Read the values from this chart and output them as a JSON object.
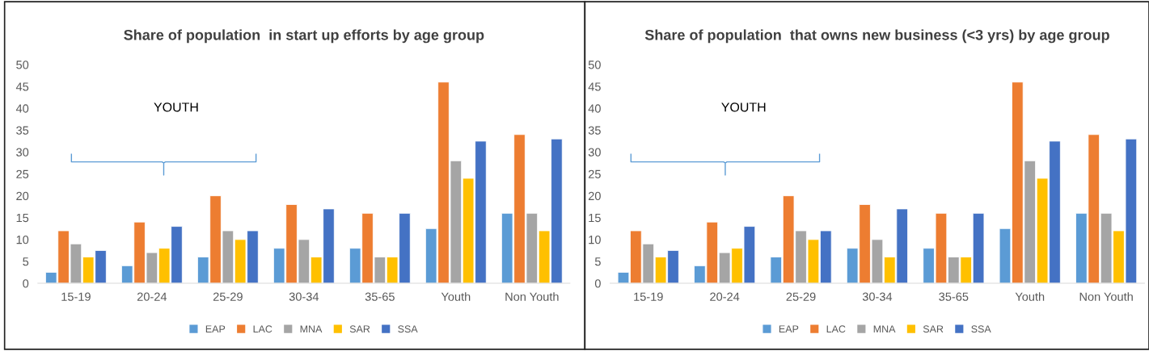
{
  "chart_data": [
    {
      "type": "bar",
      "title": "Share of population  in start up efforts by age group",
      "categories": [
        "15-19",
        "20-24",
        "25-29",
        "30-34",
        "35-65",
        "Youth",
        "Non Youth"
      ],
      "series": [
        {
          "name": "EAP",
          "color": "#5b9bd5",
          "values": [
            2.5,
            4,
            6,
            8,
            8,
            12.5,
            16
          ]
        },
        {
          "name": "LAC",
          "color": "#ed7d31",
          "values": [
            12,
            14,
            20,
            18,
            16,
            46,
            34
          ]
        },
        {
          "name": "MNA",
          "color": "#a5a5a5",
          "values": [
            9,
            7,
            12,
            10,
            6,
            28,
            16
          ]
        },
        {
          "name": "SAR",
          "color": "#ffc000",
          "values": [
            6,
            8,
            10,
            6,
            6,
            24,
            12
          ]
        },
        {
          "name": "SSA",
          "color": "#4472c4",
          "values": [
            7.5,
            13,
            12,
            17,
            16,
            32.5,
            33
          ]
        }
      ],
      "ylim": [
        0,
        50
      ],
      "yticks": [
        0,
        5,
        10,
        15,
        20,
        25,
        30,
        35,
        40,
        45,
        50
      ],
      "grid": false,
      "legend": "bottom",
      "annotations": [
        "YOUTH"
      ]
    },
    {
      "type": "bar",
      "title": "Share of population  that owns new business (<3 yrs) by age group",
      "categories": [
        "15-19",
        "20-24",
        "25-29",
        "30-34",
        "35-65",
        "Youth",
        "Non Youth"
      ],
      "series": [
        {
          "name": "EAP",
          "color": "#5b9bd5",
          "values": [
            2.5,
            4,
            6,
            8,
            8,
            12.5,
            16
          ]
        },
        {
          "name": "LAC",
          "color": "#ed7d31",
          "values": [
            12,
            14,
            20,
            18,
            16,
            46,
            34
          ]
        },
        {
          "name": "MNA",
          "color": "#a5a5a5",
          "values": [
            9,
            7,
            12,
            10,
            6,
            28,
            16
          ]
        },
        {
          "name": "SAR",
          "color": "#ffc000",
          "values": [
            6,
            8,
            10,
            6,
            6,
            24,
            12
          ]
        },
        {
          "name": "SSA",
          "color": "#4472c4",
          "values": [
            7.5,
            13,
            12,
            17,
            16,
            32.5,
            33
          ]
        }
      ],
      "ylim": [
        0,
        50
      ],
      "yticks": [
        0,
        5,
        10,
        15,
        20,
        25,
        30,
        35,
        40,
        45,
        50
      ],
      "grid": false,
      "legend": "bottom",
      "annotations": [
        "YOUTH"
      ]
    }
  ]
}
